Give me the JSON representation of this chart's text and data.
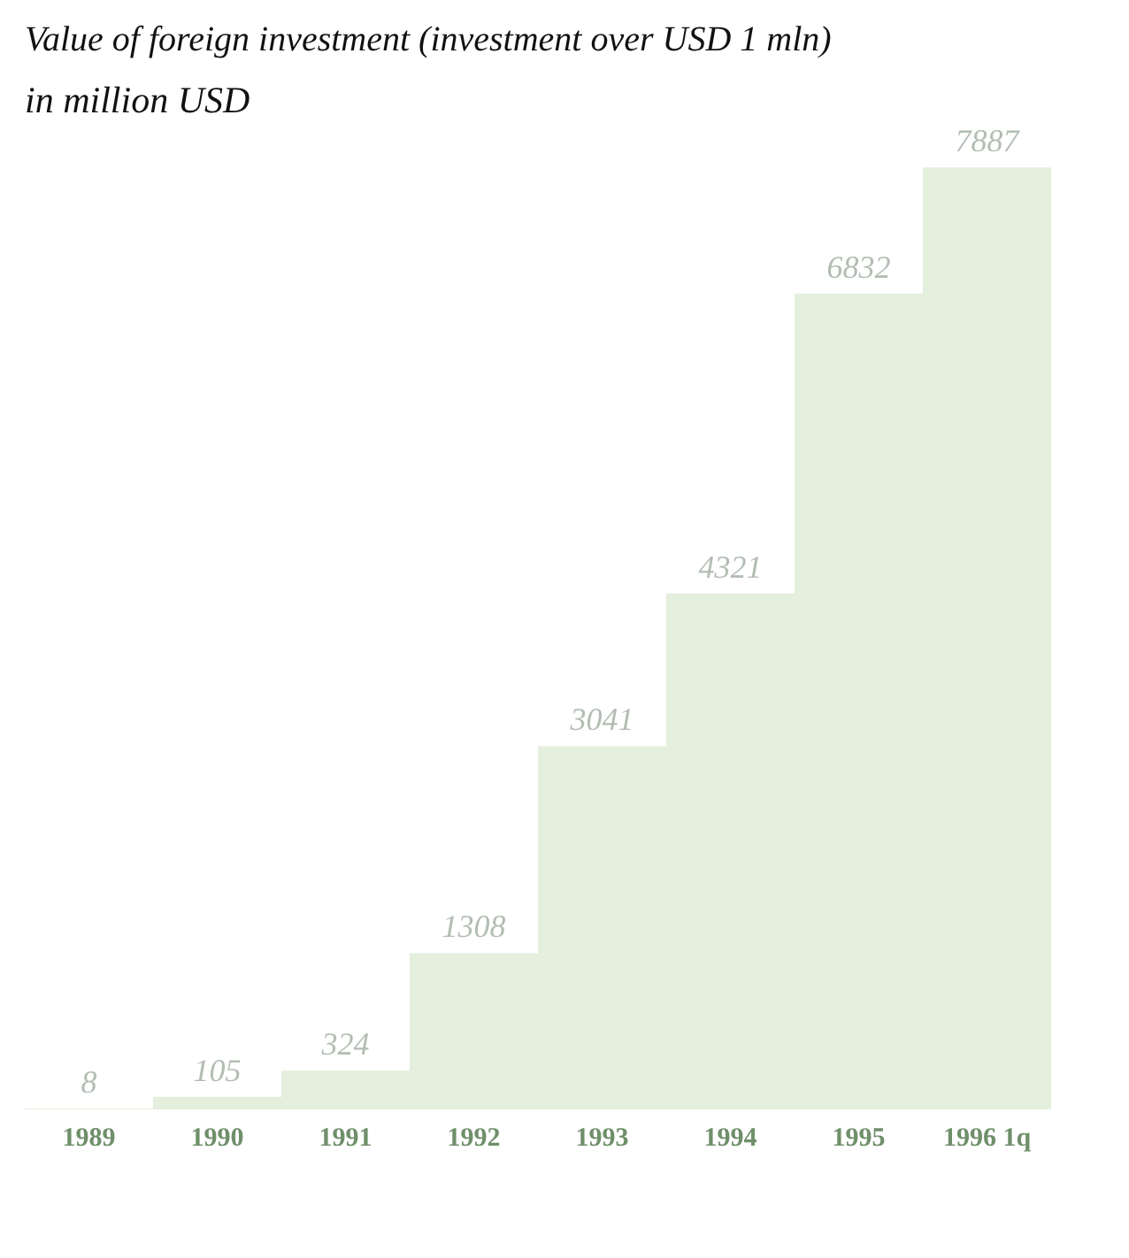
{
  "chart_data": {
    "type": "bar",
    "title": "Value of foreign investment (investment over USD 1 mln)",
    "subtitle": "in million USD",
    "categories": [
      "1989",
      "1990",
      "1991",
      "1992",
      "1993",
      "1994",
      "1995",
      "1996 1q"
    ],
    "values": [
      8,
      105,
      324,
      1308,
      3041,
      4321,
      6832,
      7887
    ],
    "color": "#e4efdd",
    "data_labels": true
  }
}
